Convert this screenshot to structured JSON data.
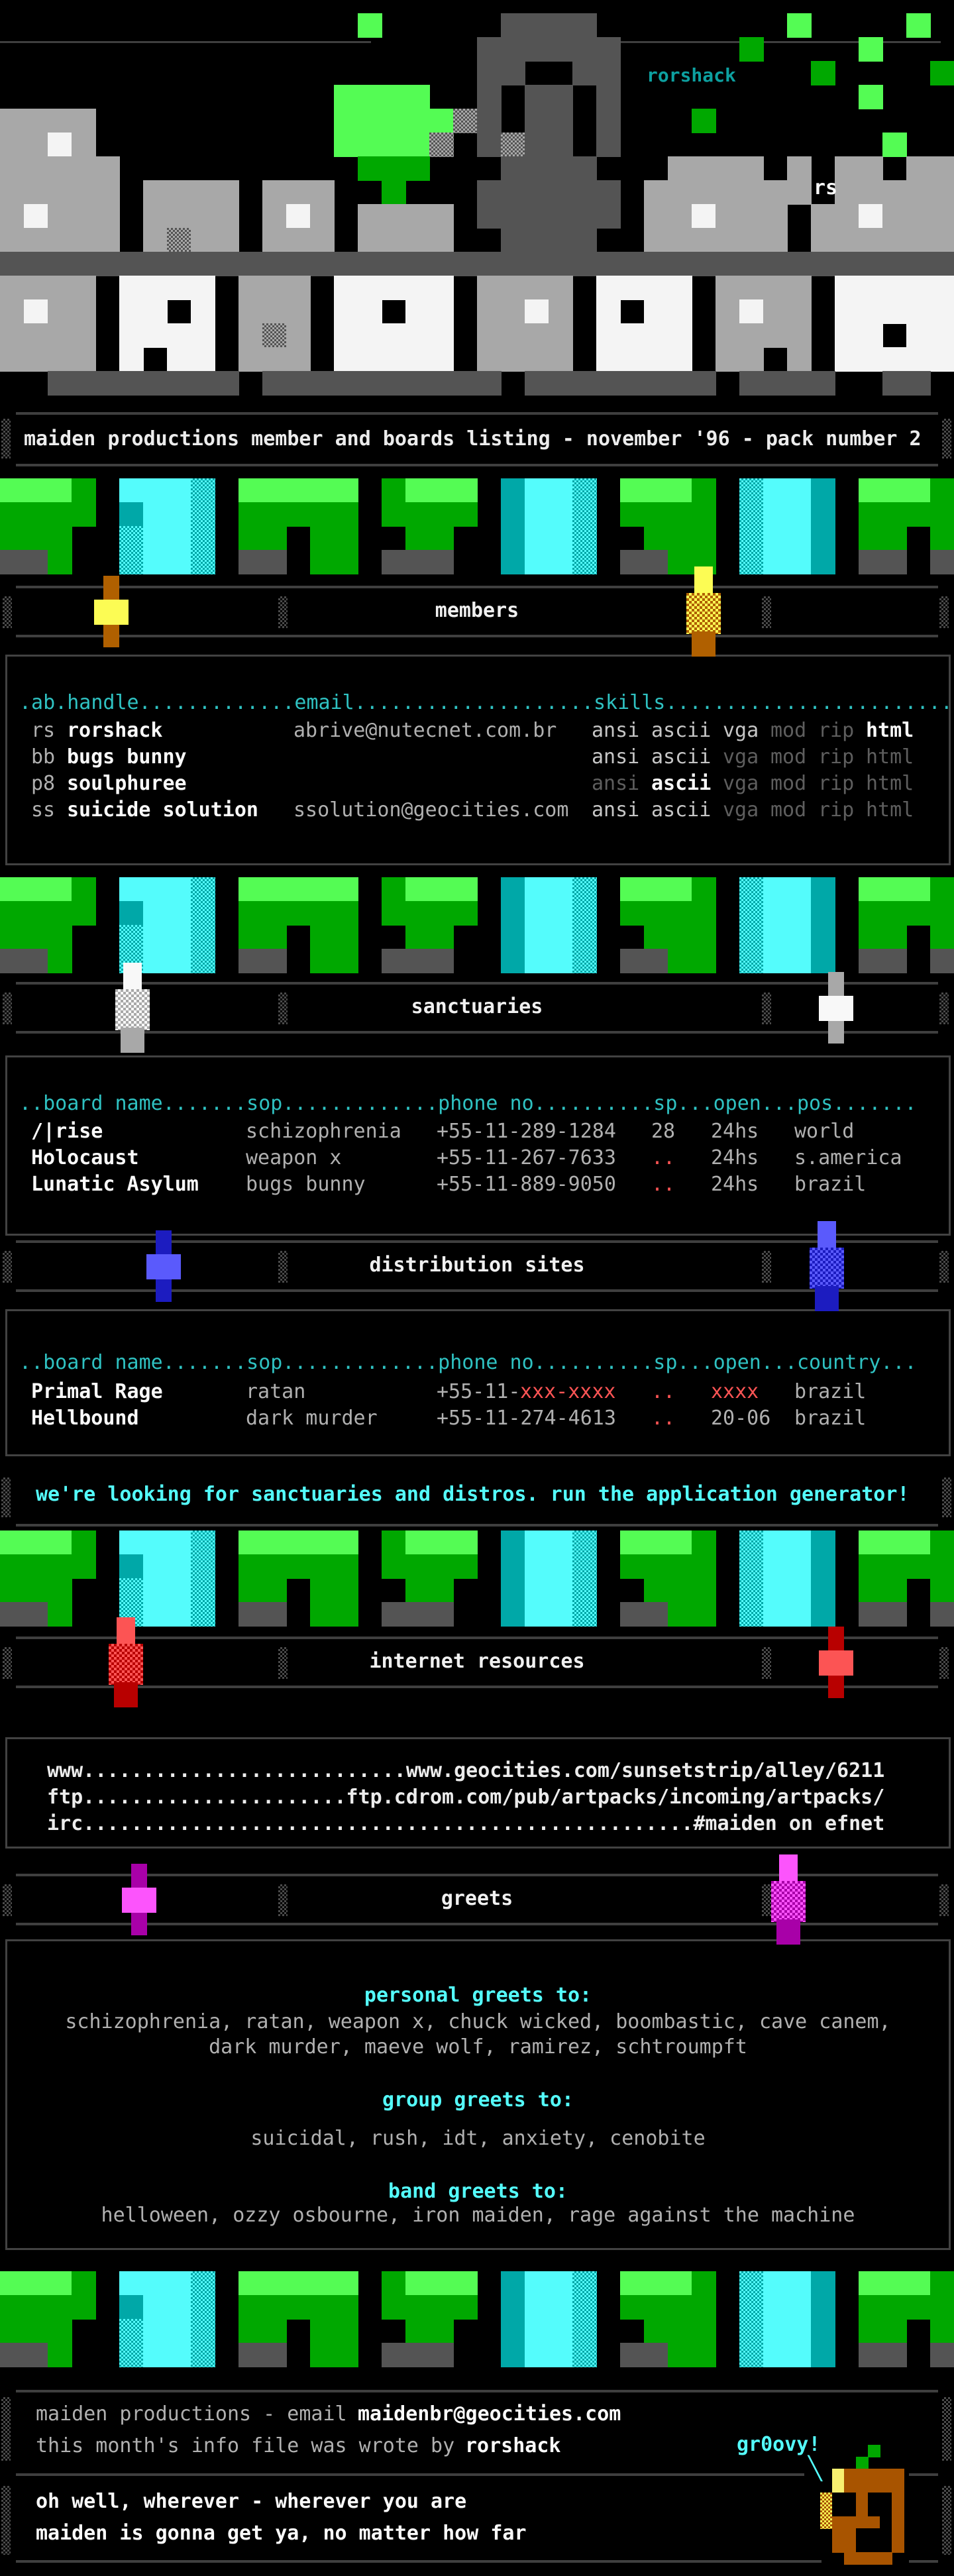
{
  "palette": {
    "background": "#000000",
    "rule_gray": "#3f3f3f",
    "header_cyan": "#2fc2c2",
    "bright_cyan": "#54fcfc",
    "signature_teal": "#0da0a0",
    "text_gray": "#b0b0b0",
    "dim_gray": "#5e5e5e",
    "white": "#fafafa",
    "red": "#fc5454"
  },
  "top_art": {
    "rorshack_label": "rorshack",
    "rs_label": "rs",
    "palette": {
      "D": "#545454",
      "G": "#a8a8a8",
      "W": "#f4f4f4",
      "h": "d:#a8a8a8,#545454",
      "g": "#00a800",
      "L": "#54fc54"
    },
    "grid": [
      "               L     DDDD        L    L ",
      "                    DDDDDD     g    L   ",
      "                    DD  DD        g    g",
      "              LLLL  D DD D          L   ",
      "GGGG          LLLLLhD DD D   g          ",
      "GGWG          LLLLh DhDD D           L  ",
      "GGGGG          ggg   DDDD   GGGG G GG GG",
      "GGGGG GGGG GGG  g   DDDDDD GGGGGGG GGGGG",
      "GWGGG GGGG GWG GGGG DDDDDD GGWGGG GGWGGG",
      "GGGGG GhGG GGG GGGG  DDDD  GGGGGG GGGGGG",
      "DDDDDDDDDDDDDDDDDDDDDDDDDDDDDDDDDDDDDDDD",
      "GGGG WWWW GGG WWWWW GGGG WWWW GGGG WWWWW",
      "GWGG WW W GGG WW WW GGWG W WW GWGG WWWWW",
      "GGGG WWWW GhG WWWWW GGGG WWWW GGGG WW WW",
      "GGGG W WW GGG WWWWW GGGG WWWW GG G WWWWW",
      "  DDDDDDDD DDDDDDDDDD DDDDDDDD DDDD  DD "
    ]
  },
  "divider": {
    "palette": {
      "L": "#54fc54",
      "g": "#00a800",
      "C": "#54fcfc",
      "c": "#00a8a8",
      "v": "d:#00a8a8,#54fcfc",
      "D": "#545454"
    },
    "grid": [
      "LLLg CCCv LLLLL gLLL cCCv LLLg vCCc LLLg",
      "gggg cCCv ggggg gggg cCCv gggg vCCc gggg",
      "ggg  vCCv gg gg  gg  cCCv  ggg vCCc gg g",
      "DDg  vCCv DD gg DDD  cCCv DDgg vCCc DD D"
    ]
  },
  "title_bar": {
    "text": "maiden productions member and boards listing - november '96 - pack number 2"
  },
  "sections": {
    "members": {
      "heading": "members",
      "header_row": ".ab.handle.............email....................skills........................",
      "rows": [
        {
          "abbr": "rs",
          "handle": "rorshack",
          "email": "abrive@nutecnet.com.br",
          "skills": [
            [
              "ansi",
              "on"
            ],
            [
              "ascii",
              "on"
            ],
            [
              "vga",
              "on"
            ],
            [
              "mod",
              "off"
            ],
            [
              "rip",
              "off"
            ],
            [
              "html",
              "hi"
            ]
          ]
        },
        {
          "abbr": "bb",
          "handle": "bugs bunny",
          "email": "",
          "skills": [
            [
              "ansi",
              "on"
            ],
            [
              "ascii",
              "on"
            ],
            [
              "vga",
              "off"
            ],
            [
              "mod",
              "off"
            ],
            [
              "rip",
              "off"
            ],
            [
              "html",
              "off"
            ]
          ]
        },
        {
          "abbr": "p8",
          "handle": "soulphuree",
          "email": "",
          "skills": [
            [
              "ansi",
              "off"
            ],
            [
              "ascii",
              "hi"
            ],
            [
              "vga",
              "off"
            ],
            [
              "mod",
              "off"
            ],
            [
              "rip",
              "off"
            ],
            [
              "html",
              "off"
            ]
          ]
        },
        {
          "abbr": "ss",
          "handle": "suicide solution",
          "email": "ssolution@geocities.com",
          "skills": [
            [
              "ansi",
              "on"
            ],
            [
              "ascii",
              "on"
            ],
            [
              "vga",
              "off"
            ],
            [
              "mod",
              "off"
            ],
            [
              "rip",
              "off"
            ],
            [
              "html",
              "off"
            ]
          ]
        }
      ]
    },
    "sanctuaries": {
      "heading": "sanctuaries",
      "header_row": "..board name.......sop.............phone no..........sp...open...pos.......",
      "rows": [
        {
          "name": "/|rise",
          "sop": "schizophrenia",
          "phone": "+55-11-289-1284",
          "phone_red": "",
          "sp": "28",
          "sp_red": false,
          "open": "24hs",
          "open_red": false,
          "pos": "world"
        },
        {
          "name": "Holocaust",
          "sop": "weapon x",
          "phone": "+55-11-267-7633",
          "phone_red": "",
          "sp": "..",
          "sp_red": true,
          "open": "24hs",
          "open_red": false,
          "pos": "s.america"
        },
        {
          "name": "Lunatic Asylum",
          "sop": "bugs bunny",
          "phone": "+55-11-889-9050",
          "phone_red": "",
          "sp": "..",
          "sp_red": true,
          "open": "24hs",
          "open_red": false,
          "pos": "brazil"
        }
      ]
    },
    "distribution": {
      "heading": "distribution sites",
      "header_row": "..board name.......sop.............phone no..........sp...open...country...",
      "rows": [
        {
          "name": "Primal Rage",
          "sop": "ratan",
          "phone": "+55-11-",
          "phone_red": "xxx-xxxx",
          "sp": "..",
          "sp_red": true,
          "open": "xxxx",
          "open_red": true,
          "pos": "brazil"
        },
        {
          "name": "Hellbound",
          "sop": "dark murder",
          "phone": "+55-11-274-4613",
          "phone_red": "",
          "sp": "..",
          "sp_red": true,
          "open": "20-06",
          "open_red": false,
          "pos": "brazil"
        }
      ]
    },
    "internet": {
      "heading": "internet resources",
      "lines": [
        "www...........................www.geocities.com/sunsetstrip/alley/6211",
        "ftp......................ftp.cdrom.com/pub/artpacks/incoming/artpacks/",
        "irc...................................................#maiden on efnet"
      ]
    },
    "greets": {
      "heading": "greets",
      "personal_label": "personal greets to:",
      "personal_lines": [
        "schizophrenia, ratan, weapon x, chuck wicked, boombastic, cave canem,",
        "dark murder, maeve wolf, ramirez, schtroumpft"
      ],
      "group_label": "group greets to:",
      "group_lines": [
        "suicidal, rush, idt, anxiety, cenobite"
      ],
      "band_label": "band greets to:",
      "band_lines": [
        "helloween, ozzy osbourne, iron maiden, rage against the machine"
      ]
    }
  },
  "looking_line": "we're looking for sanctuaries and distros. run the application generator!",
  "footer": {
    "line1_prefix": "maiden productions - email ",
    "line1_email": "maidenbr@geocities.com",
    "line2_prefix": "this month's info file was wrote by ",
    "line2_author": "rorshack",
    "groovy": "gr0ovy!",
    "lyric1": "oh well, wherever - wherever you are",
    "lyric2": "maiden is gonna get ya, no matter how far"
  },
  "pumpkin": {
    "palette": {
      "O": "#a85400",
      "Y": "#f8f070",
      "H": "d:#a85400,#fcfc54",
      "G": "#00a800",
      "K": "#000000"
    },
    "grid": [
      "    G   ",
      "   G    ",
      " YOOOOO ",
      " YOOOOO ",
      "HKKOKKO ",
      "HKKOKKO ",
      "HOOOOKO ",
      " OOKKKO ",
      " OOKKKO ",
      "  OOOO  "
    ]
  },
  "section_accents": {
    "members": {
      "bright": "#fcfc54",
      "dark": "#b06000"
    },
    "sanctuaries": {
      "bright": "#f8f8f8",
      "dark": "#a8a8a8"
    },
    "distribution": {
      "bright": "#5a5afc",
      "dark": "#1c1cc0"
    },
    "internet": {
      "bright": "#fc5454",
      "dark": "#b80000"
    },
    "greets": {
      "bright": "#fc54fc",
      "dark": "#a800a8"
    }
  }
}
